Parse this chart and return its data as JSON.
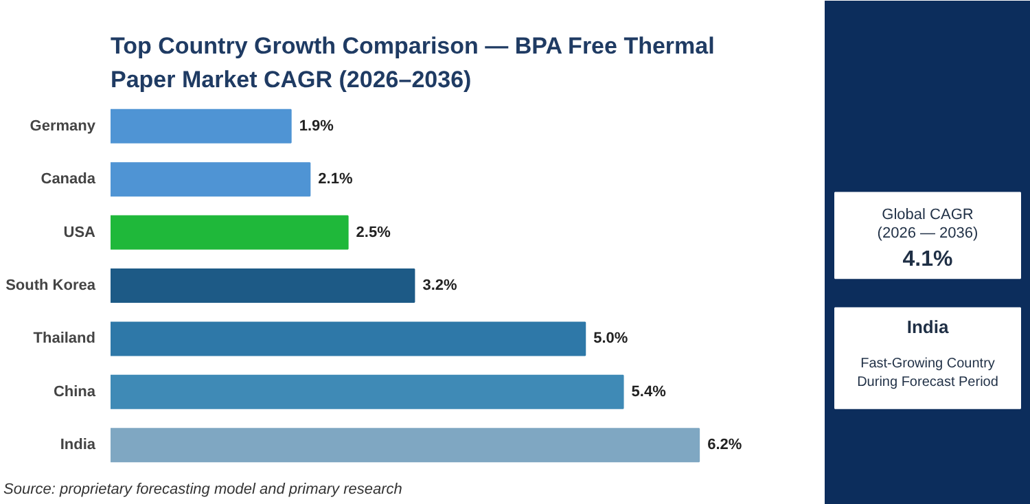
{
  "chart_data": {
    "type": "bar",
    "orientation": "horizontal",
    "title": "Top Country Growth Comparison — BPA Free Thermal Paper Market CAGR (2026–2036)",
    "categories": [
      "Germany",
      "Canada",
      "USA",
      "South Korea",
      "Thailand",
      "China",
      "India"
    ],
    "values": [
      1.9,
      2.1,
      2.5,
      3.2,
      5.0,
      5.4,
      6.2
    ],
    "colors": [
      "#4f94d4",
      "#4f94d4",
      "#1fb83a",
      "#1d5a86",
      "#2e78a8",
      "#3f8ab6",
      "#7fa7c2"
    ],
    "value_labels": [
      "1.9%",
      "2.1%",
      "2.5%",
      "3.2%",
      "5.0%",
      "5.4%",
      "6.2%"
    ],
    "grid": false,
    "annotations": [
      "Source: proprietary forecasting model and primary research",
      "Global CAGR",
      "(2026 — 2036)",
      "4.1%",
      "India",
      "Fast-Growing Country",
      "During Forecast Period"
    ]
  }
}
